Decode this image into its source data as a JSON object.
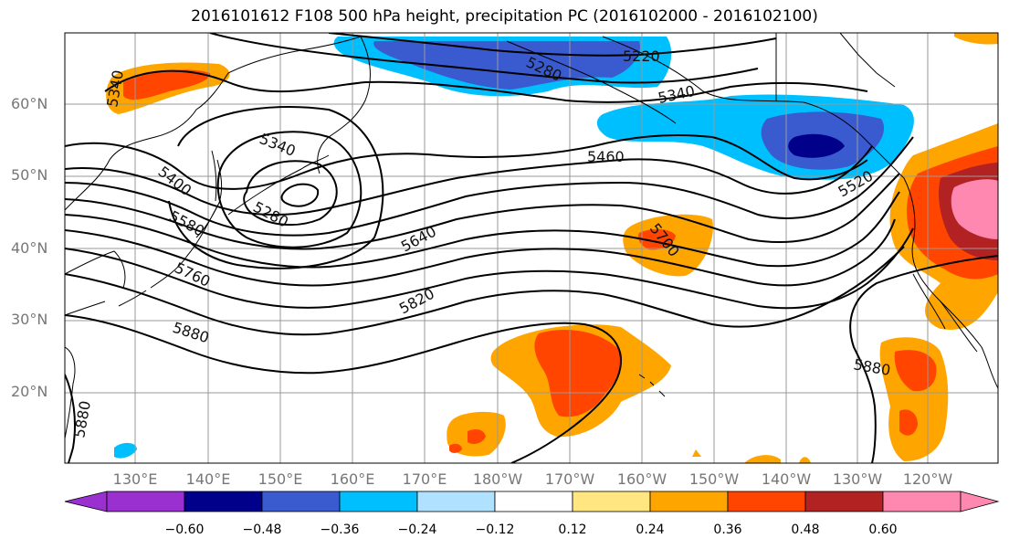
{
  "title": "2016101612 F108 500 hPa height, precipitation PC (2016102000 - 2016102100)",
  "lat_labels": [
    "60°N",
    "50°N",
    "40°N",
    "30°N",
    "20°N"
  ],
  "lon_labels": [
    "130°E",
    "140°E",
    "150°E",
    "160°E",
    "170°E",
    "180°W",
    "170°W",
    "160°W",
    "150°W",
    "140°W",
    "130°W",
    "120°W"
  ],
  "colorbar": {
    "ticks": [
      "−0.60",
      "−0.48",
      "−0.36",
      "−0.24",
      "−0.12",
      "0.12",
      "0.24",
      "0.36",
      "0.48",
      "0.60"
    ],
    "colors": [
      "#9b30d0",
      "#00008b",
      "#3a5bd0",
      "#00bfff",
      "#b0e2ff",
      "#ffffff",
      "#ffe680",
      "#ffa500",
      "#ff4500",
      "#b22222",
      "#ff88b0"
    ]
  },
  "contour_labels": [
    "5340",
    "5220",
    "5280",
    "5340",
    "5460",
    "5400",
    "5340",
    "5280",
    "5580",
    "5640",
    "5700",
    "5520",
    "5760",
    "5820",
    "5880",
    "5880",
    "5880"
  ]
}
